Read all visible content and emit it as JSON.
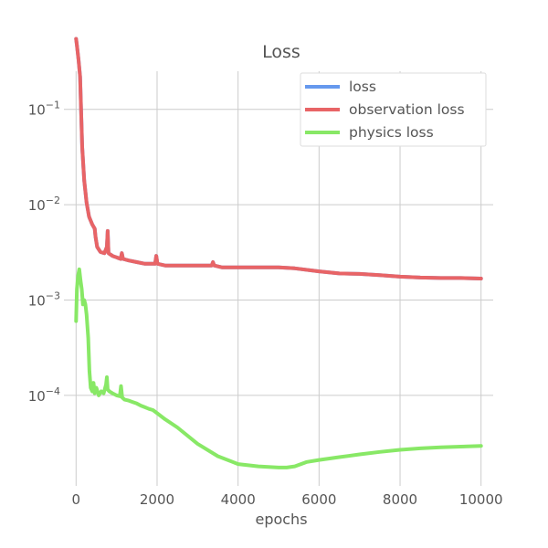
{
  "chart_data": {
    "type": "line",
    "title": "Loss",
    "xlabel": "epochs",
    "ylabel": "",
    "xlim": [
      -300,
      10300
    ],
    "ylim_log10": [
      -4.95,
      -0.6
    ],
    "yscale": "log",
    "grid": true,
    "legend_position": "top-right",
    "x_ticks": [
      0,
      2000,
      4000,
      6000,
      8000,
      10000
    ],
    "x_tick_labels": [
      "0",
      "2000",
      "4000",
      "6000",
      "8000",
      "10000"
    ],
    "y_tick_exponents": [
      -1,
      -2,
      -3,
      -4
    ],
    "y_tick_labels": [
      {
        "base": "10",
        "exp": "−1"
      },
      {
        "base": "10",
        "exp": "−2"
      },
      {
        "base": "10",
        "exp": "−3"
      },
      {
        "base": "10",
        "exp": "−4"
      }
    ],
    "series": [
      {
        "name": "loss",
        "color": "#6699ee",
        "x": [
          0,
          20,
          60,
          100,
          150,
          200,
          260,
          320,
          400,
          460,
          480,
          520,
          600,
          700,
          760,
          780,
          800,
          900,
          1000,
          1100,
          1130,
          1160,
          1300,
          1500,
          1700,
          1950,
          1980,
          2010,
          2200,
          2500,
          3000,
          3350,
          3380,
          3410,
          3600,
          4000,
          4500,
          5000,
          5400,
          6000,
          6500,
          7000,
          7500,
          8000,
          8500,
          9000,
          9500,
          10000
        ],
        "y": [
          0.55,
          0.47,
          0.33,
          0.22,
          0.04,
          0.018,
          0.0105,
          0.0075,
          0.0062,
          0.0056,
          0.0046,
          0.0036,
          0.0032,
          0.0031,
          0.0036,
          0.0053,
          0.0031,
          0.0029,
          0.0028,
          0.0027,
          0.0031,
          0.0027,
          0.0026,
          0.0025,
          0.0024,
          0.0024,
          0.0029,
          0.0024,
          0.0023,
          0.0023,
          0.0023,
          0.0023,
          0.0025,
          0.0023,
          0.0022,
          0.0022,
          0.0022,
          0.0022,
          0.00215,
          0.002,
          0.0019,
          0.00188,
          0.00182,
          0.00176,
          0.00172,
          0.0017,
          0.0017,
          0.00168
        ]
      },
      {
        "name": "observation loss",
        "color": "#e86466",
        "x": [
          0,
          20,
          60,
          100,
          150,
          200,
          260,
          320,
          400,
          460,
          480,
          520,
          600,
          700,
          760,
          780,
          800,
          900,
          1000,
          1100,
          1130,
          1160,
          1300,
          1500,
          1700,
          1950,
          1980,
          2010,
          2200,
          2500,
          3000,
          3350,
          3380,
          3410,
          3600,
          4000,
          4500,
          5000,
          5400,
          6000,
          6500,
          7000,
          7500,
          8000,
          8500,
          9000,
          9500,
          10000
        ],
        "y": [
          0.55,
          0.47,
          0.33,
          0.22,
          0.04,
          0.018,
          0.0105,
          0.0075,
          0.0062,
          0.0056,
          0.0046,
          0.0036,
          0.0032,
          0.0031,
          0.0036,
          0.0053,
          0.0031,
          0.0029,
          0.0028,
          0.0027,
          0.0031,
          0.0027,
          0.0026,
          0.0025,
          0.0024,
          0.0024,
          0.0029,
          0.0024,
          0.0023,
          0.0023,
          0.0023,
          0.0023,
          0.0025,
          0.0023,
          0.0022,
          0.0022,
          0.0022,
          0.0022,
          0.00215,
          0.002,
          0.0019,
          0.00188,
          0.00182,
          0.00176,
          0.00172,
          0.0017,
          0.0017,
          0.00168
        ]
      },
      {
        "name": "physics loss",
        "color": "#88e866",
        "x": [
          0,
          20,
          50,
          80,
          110,
          140,
          170,
          200,
          230,
          260,
          300,
          330,
          360,
          400,
          430,
          460,
          500,
          560,
          620,
          680,
          740,
          760,
          780,
          820,
          900,
          1000,
          1080,
          1110,
          1140,
          1200,
          1300,
          1400,
          1500,
          1600,
          1700,
          1800,
          1900,
          2000,
          2200,
          2500,
          3000,
          3500,
          4000,
          4500,
          5000,
          5200,
          5400,
          5700,
          6000,
          6500,
          7000,
          7500,
          8000,
          8500,
          9000,
          9500,
          10000
        ],
        "y": [
          0.0006,
          0.0013,
          0.0018,
          0.0021,
          0.0016,
          0.0013,
          0.0009,
          0.001,
          0.0009,
          0.0007,
          0.0004,
          0.00018,
          0.00012,
          0.00011,
          0.000135,
          0.000105,
          0.00012,
          0.0001,
          0.00011,
          0.000105,
          0.00013,
          0.000155,
          0.000115,
          0.00011,
          0.000105,
          0.0001,
          9.8e-05,
          0.000125,
          9.5e-05,
          9e-05,
          8.8e-05,
          8.5e-05,
          8.2e-05,
          7.8e-05,
          7.5e-05,
          7.2e-05,
          7e-05,
          6.5e-05,
          5.6e-05,
          4.6e-05,
          3.1e-05,
          2.3e-05,
          1.9e-05,
          1.8e-05,
          1.75e-05,
          1.75e-05,
          1.8e-05,
          2e-05,
          2.1e-05,
          2.25e-05,
          2.4e-05,
          2.55e-05,
          2.68e-05,
          2.78e-05,
          2.85e-05,
          2.9e-05,
          2.95e-05
        ]
      }
    ]
  }
}
